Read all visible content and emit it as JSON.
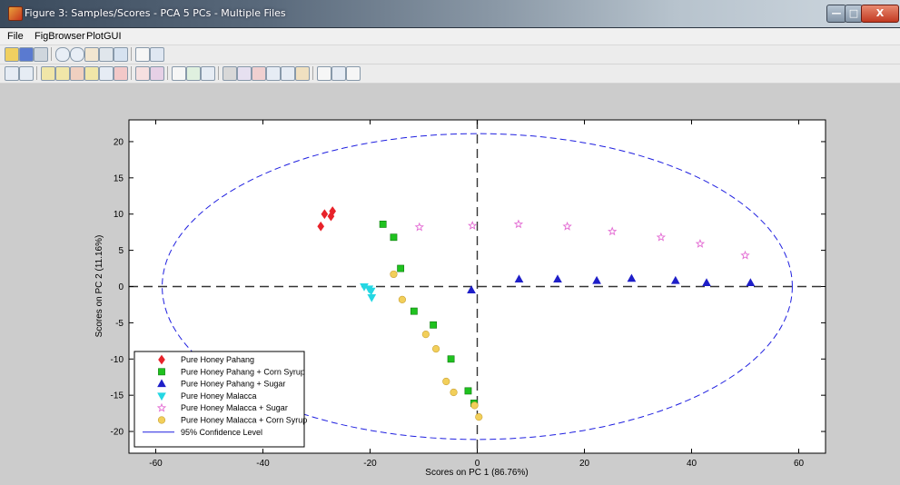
{
  "window": {
    "title": "Figure 3: Samples/Scores - PCA 5 PCs - Multiple Files",
    "close_label": "X"
  },
  "menu": {
    "items": [
      {
        "label": "File"
      },
      {
        "label": "FigBrowser"
      },
      {
        "label": "PlotGUI"
      }
    ]
  },
  "toolbar1": {
    "icons": [
      "open-icon",
      "save-icon",
      "print-icon",
      "zoom-in-icon",
      "zoom-out-icon",
      "pan-icon",
      "rotate-icon",
      "data-cursor-icon",
      "plot-browser-icon",
      "legend-toggle-icon"
    ]
  },
  "toolbar2": {
    "icons": [
      "edit-plot-icon",
      "insert-icon",
      "select-x-icon",
      "select-y-icon",
      "select-xy-icon",
      "exclude-icon",
      "reduce-icon",
      "classes-icon",
      "scatter-icon",
      "axis-icon",
      "spectra-icon",
      "scale-icon",
      "tools-icon",
      "select-icon",
      "multi-plot-icon",
      "histogram-icon",
      "confidence-icon",
      "filter-icon",
      "help-icon",
      "plot-settings-icon",
      "table-icon",
      "grid-icon"
    ]
  },
  "chart_data": {
    "type": "scatter",
    "title": "",
    "xlabel": "Scores on PC 1 (86.76%)",
    "ylabel": "Scores on PC 2 (11.16%)",
    "xlim": [
      -65,
      65
    ],
    "ylim": [
      -23,
      23
    ],
    "xticks": [
      -60,
      -40,
      -20,
      0,
      20,
      40,
      60
    ],
    "yticks": [
      -20,
      -15,
      -10,
      -5,
      0,
      5,
      10,
      15,
      20
    ],
    "grid": false,
    "legend_position": "bottom-left",
    "series": [
      {
        "name": "Pure Honey Pahang",
        "marker": "diamond",
        "color": "#e8232a",
        "points": [
          [
            -29.2,
            8.3
          ],
          [
            -28.5,
            10.0
          ],
          [
            -27.3,
            9.7
          ],
          [
            -27.0,
            10.4
          ]
        ]
      },
      {
        "name": "Pure Honey Pahang + Corn Syrup",
        "marker": "square",
        "color": "#1fc21f",
        "points": [
          [
            -17.6,
            8.6
          ],
          [
            -15.6,
            6.8
          ],
          [
            -14.3,
            2.5
          ],
          [
            -11.8,
            -3.4
          ],
          [
            -8.2,
            -5.3
          ],
          [
            -4.9,
            -10.0
          ],
          [
            -1.7,
            -14.4
          ],
          [
            -0.6,
            -16.1
          ]
        ]
      },
      {
        "name": "Pure Honey Pahang + Sugar",
        "marker": "triangle-up",
        "color": "#1f1fc8",
        "points": [
          [
            -1.1,
            -0.5
          ],
          [
            7.8,
            1.0
          ],
          [
            15.0,
            1.0
          ],
          [
            22.3,
            0.8
          ],
          [
            28.8,
            1.1
          ],
          [
            37.0,
            0.8
          ],
          [
            42.8,
            0.5
          ],
          [
            51.0,
            0.5
          ]
        ]
      },
      {
        "name": "Pure Honey Malacca",
        "marker": "triangle-down",
        "color": "#25d7e3",
        "points": [
          [
            -21.1,
            0.0
          ],
          [
            -20.2,
            -0.3
          ],
          [
            -19.8,
            -0.6
          ],
          [
            -19.7,
            -1.5
          ]
        ]
      },
      {
        "name": "Pure Honey Malacca + Sugar",
        "marker": "star",
        "color": "#e36ad3",
        "points": [
          [
            -10.8,
            8.2
          ],
          [
            -0.9,
            8.4
          ],
          [
            7.7,
            8.6
          ],
          [
            16.8,
            8.3
          ],
          [
            25.2,
            7.6
          ],
          [
            34.3,
            6.8
          ],
          [
            41.6,
            5.9
          ],
          [
            50.0,
            4.3
          ]
        ]
      },
      {
        "name": "Pure Honey Malacca + Corn Syrup",
        "marker": "circle",
        "color": "#f2cf5a",
        "points": [
          [
            -15.6,
            1.7
          ],
          [
            -14.0,
            -1.8
          ],
          [
            -9.6,
            -6.6
          ],
          [
            -7.7,
            -8.6
          ],
          [
            -5.8,
            -13.1
          ],
          [
            -4.4,
            -14.6
          ],
          [
            -0.5,
            -16.4
          ],
          [
            0.3,
            -18.0
          ]
        ]
      }
    ],
    "confidence_ellipse": {
      "name": "95% Confidence Level",
      "center": [
        0,
        0
      ],
      "semi_axis_x": 58.8,
      "semi_axis_y": 21.1,
      "color": "#1f1fe0"
    }
  }
}
